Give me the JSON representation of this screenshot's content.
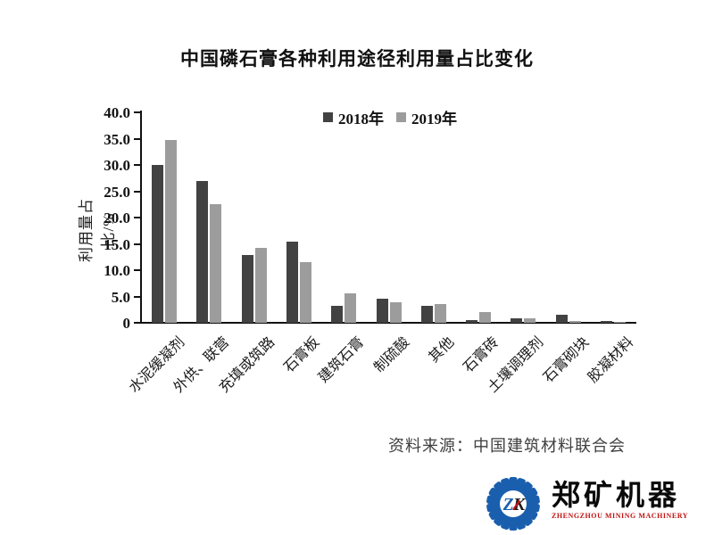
{
  "title": "中国磷石膏各种利用途径利用量占比变化",
  "chart_data": {
    "type": "bar",
    "title": "中国磷石膏各种利用途径利用量占比变化",
    "categories": [
      "水泥缓凝剂",
      "外供、联营",
      "充填或筑路",
      "石膏板",
      "建筑石膏",
      "制硫酸",
      "其他",
      "石膏砖",
      "土壤调理剂",
      "石膏砌块",
      "胶凝材料"
    ],
    "series": [
      {
        "name": "2018年",
        "color": "#424242",
        "values": [
          30.0,
          26.9,
          12.8,
          15.4,
          3.3,
          4.5,
          3.2,
          0.5,
          0.9,
          1.6,
          0.3
        ]
      },
      {
        "name": "2019年",
        "color": "#9c9c9c",
        "values": [
          34.7,
          22.5,
          14.2,
          11.5,
          5.6,
          3.9,
          3.6,
          2.0,
          0.9,
          0.4,
          0.1
        ]
      }
    ],
    "xlabel": "",
    "ylabel": "利用量占比/%",
    "ylim": [
      0,
      40
    ],
    "ytick_step": 5,
    "ytick_labels": [
      "0",
      "5.0",
      "10.0",
      "15.0",
      "20.0",
      "25.0",
      "30.0",
      "35.0",
      "40.0"
    ],
    "grid": false,
    "legend_position": "top-inside"
  },
  "source_note": "资料来源：中国建筑材料联合会",
  "logo": {
    "gear_letter_z": "Z",
    "gear_letter_k": "K",
    "name": "郑矿机器",
    "subtitle": "ZHENGZHOU MINING MACHINERY",
    "gear_color": "#1a5fae",
    "accent_color": "#c11212"
  }
}
